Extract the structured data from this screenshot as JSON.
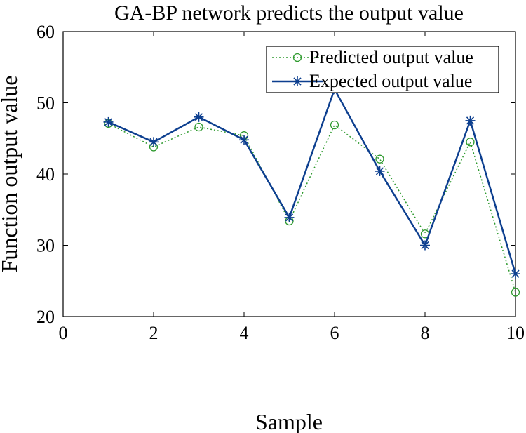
{
  "chart_data": {
    "type": "line",
    "title": "GA-BP network predicts the output value",
    "xlabel": "Sample",
    "ylabel": "Function output value",
    "xlim": [
      0,
      10
    ],
    "ylim": [
      20,
      60
    ],
    "x_ticks": [
      0,
      2,
      4,
      6,
      8,
      10
    ],
    "y_ticks": [
      20,
      30,
      40,
      50,
      60
    ],
    "grid": false,
    "legend_position": "top-right",
    "series": [
      {
        "name": "Predicted output value",
        "marker": "circle",
        "line_style": "dotted",
        "color": "#2e9a2e",
        "x": [
          1,
          2,
          3,
          4,
          5,
          6,
          7,
          8,
          9,
          10
        ],
        "values": [
          47.1,
          43.8,
          46.6,
          45.4,
          33.4,
          46.9,
          42.1,
          31.6,
          44.5,
          23.4
        ]
      },
      {
        "name": "Expected output value",
        "marker": "asterisk",
        "line_style": "solid",
        "color": "#0d3f8f",
        "x": [
          1,
          2,
          3,
          4,
          5,
          6,
          7,
          8,
          9,
          10
        ],
        "values": [
          47.3,
          44.5,
          48.0,
          44.8,
          33.9,
          51.9,
          40.4,
          30.0,
          47.5,
          26.0
        ]
      }
    ]
  }
}
